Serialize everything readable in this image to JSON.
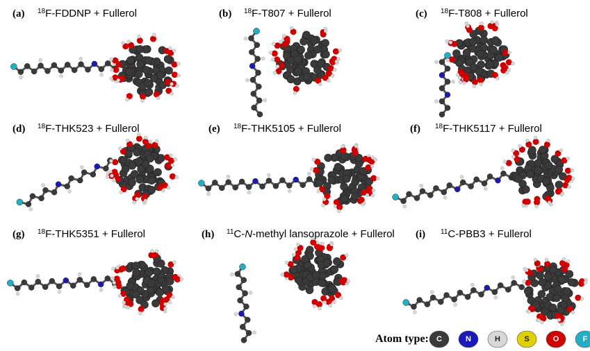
{
  "panels": [
    {
      "label": "(a)",
      "isotope": "18",
      "title": [
        "F-FDDNP + Fullerol"
      ]
    },
    {
      "label": "(b)",
      "isotope": "18",
      "title": [
        "F-T807 + Fullerol"
      ]
    },
    {
      "label": "(c)",
      "isotope": "18",
      "title": [
        "F-T808 + Fullerol"
      ]
    },
    {
      "label": "(d)",
      "isotope": "18",
      "title": [
        "F-THK523 + Fullerol"
      ]
    },
    {
      "label": "(e)",
      "isotope": "18",
      "title": [
        "F-THK5105 + Fullerol"
      ]
    },
    {
      "label": "(f)",
      "isotope": "18",
      "title": [
        "F-THK5117 + Fullerol"
      ]
    },
    {
      "label": "(g)",
      "isotope": "18",
      "title": [
        "F-THK5351 + Fullerol"
      ]
    },
    {
      "label": "(h)",
      "isotope": "11",
      "title": [
        "C-",
        "N",
        "-methyl lansoprazole + Fullerol"
      ]
    },
    {
      "label": "(i)",
      "isotope": "11",
      "title": [
        "C-PBB3 + Fullerol"
      ]
    }
  ],
  "legend": {
    "title": "Atom type:",
    "atoms": [
      {
        "symbol": "C",
        "color": "#3a3a3a"
      },
      {
        "symbol": "N",
        "color": "#1a1ab8"
      },
      {
        "symbol": "H",
        "color": "#d8d8d8"
      },
      {
        "symbol": "S",
        "color": "#e0d000"
      },
      {
        "symbol": "O",
        "color": "#d00000"
      },
      {
        "symbol": "F",
        "color": "#22aec4"
      }
    ]
  }
}
